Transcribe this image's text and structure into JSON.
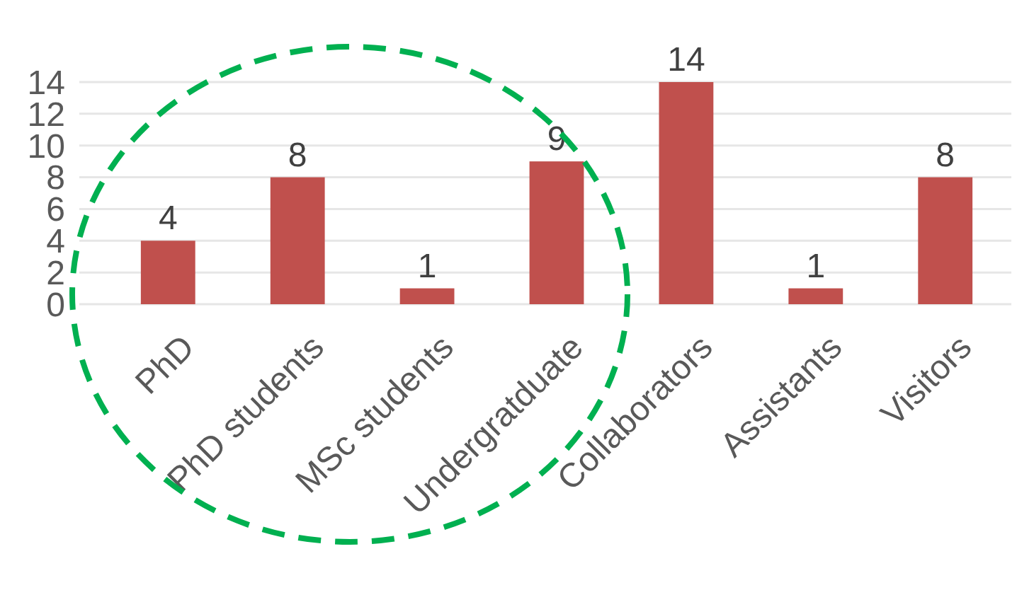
{
  "chart_data": {
    "type": "bar",
    "categories": [
      "PhD",
      "PhD students",
      "MSc students",
      "Undergratduate",
      "Collaborators",
      "Assistants",
      "Visitors"
    ],
    "values": [
      4,
      8,
      1,
      9,
      14,
      1,
      8
    ],
    "color": "#c0504d",
    "ylim": [
      0,
      14
    ],
    "yticks": [
      0,
      2,
      4,
      6,
      8,
      10,
      12,
      14
    ],
    "grid": "y",
    "data_labels": true
  }
}
